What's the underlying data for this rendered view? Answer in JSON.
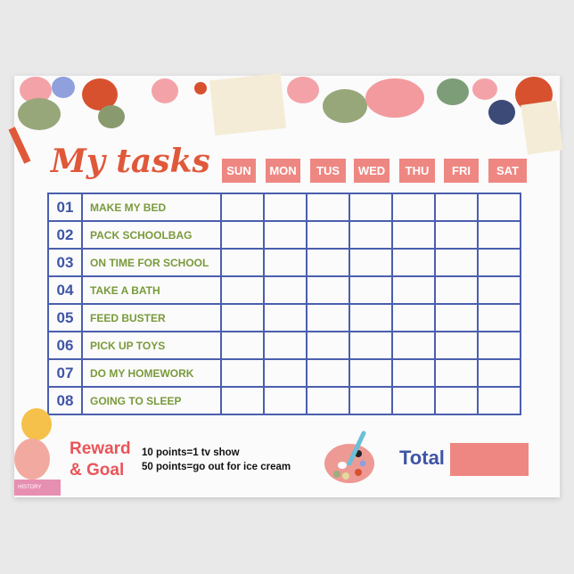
{
  "title": "My tasks",
  "days": [
    "SUN",
    "MON",
    "TUS",
    "WED",
    "THU",
    "FRI",
    "SAT"
  ],
  "tasks": [
    {
      "num": "01",
      "label": "MAKE MY BED"
    },
    {
      "num": "02",
      "label": "PACK SCHOOLBAG"
    },
    {
      "num": "03",
      "label": "ON TIME FOR SCHOOL"
    },
    {
      "num": "04",
      "label": "TAKE A BATH"
    },
    {
      "num": "05",
      "label": "FEED BUSTER"
    },
    {
      "num": "06",
      "label": "PICK UP TOYS"
    },
    {
      "num": "07",
      "label": "DO MY HOMEWORK"
    },
    {
      "num": "08",
      "label": "GOING TO SLEEP"
    }
  ],
  "reward": {
    "line1": "Reward",
    "line2": "& Goal",
    "rule1": "10 points=1 tv show",
    "rule2": "50 points=go out for ice cream"
  },
  "total_label": "Total",
  "book_label": "HISTORY",
  "colors": {
    "title": "#e0583a",
    "header": "#ee8782",
    "grid": "#4a5fae",
    "task": "#7a9a3c"
  }
}
